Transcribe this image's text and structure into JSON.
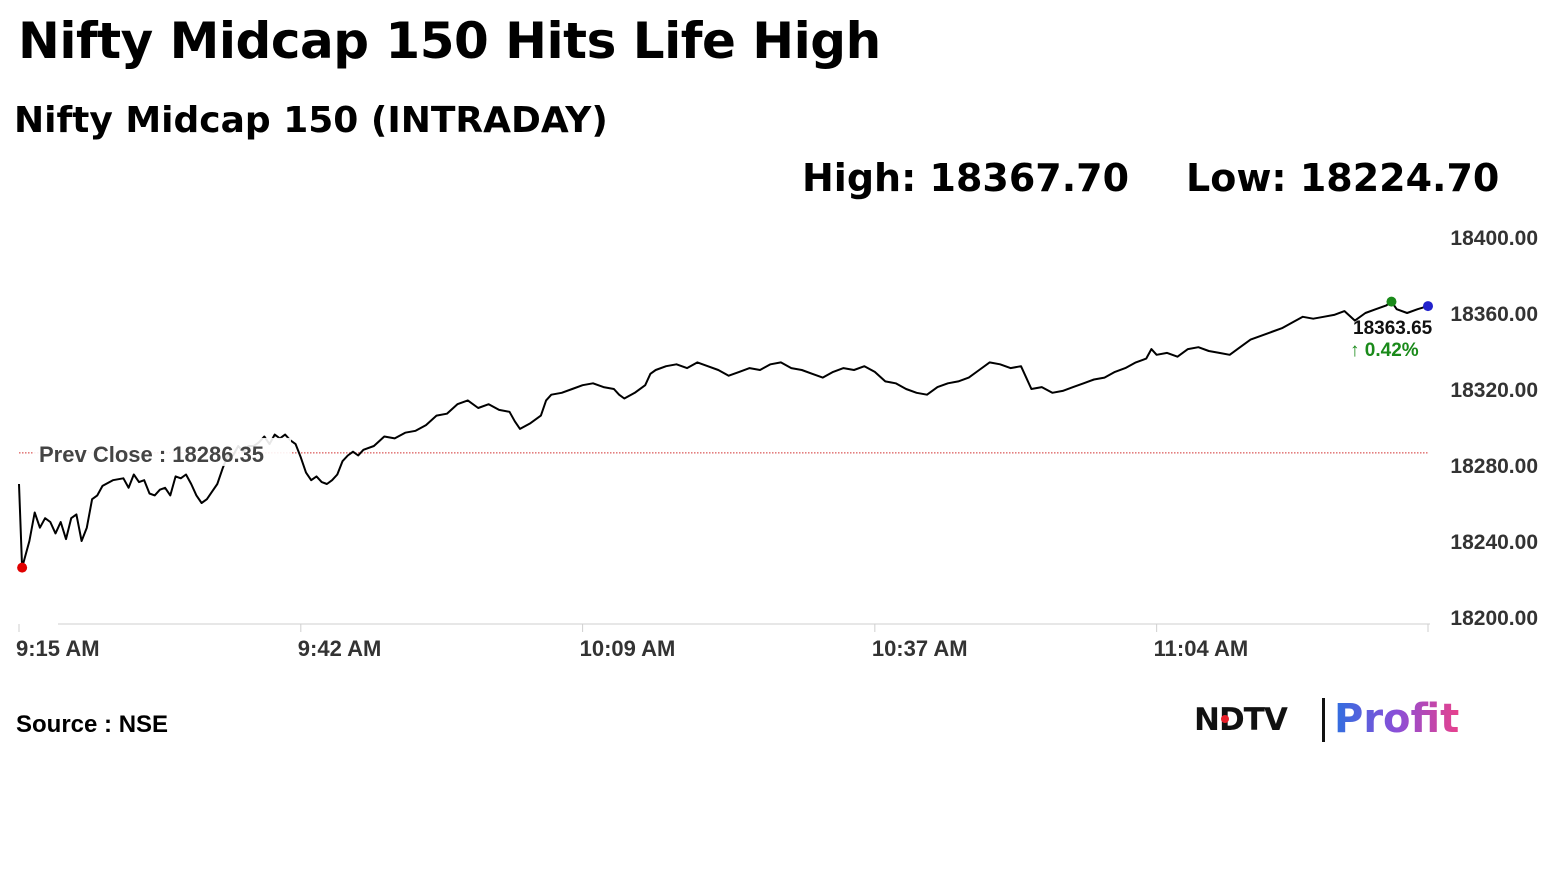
{
  "headline": "Nifty Midcap 150 Hits Life High",
  "subtitle": "Nifty Midcap 150 (INTRADAY)",
  "stats": {
    "high": "High: 18367.70",
    "low": "Low: 18224.70"
  },
  "source": "Source : NSE",
  "logo": {
    "ndtv": "NDTV",
    "profit": "Profit"
  },
  "chart_data": {
    "type": "line",
    "xlabel": "",
    "ylabel": "",
    "ylim": [
      18200,
      18400
    ],
    "y_ticks": [
      "18400.00",
      "18360.00",
      "18320.00",
      "18280.00",
      "18240.00",
      "18200.00"
    ],
    "x_ticks": [
      "9:15 AM",
      "9:42 AM",
      "10:09 AM",
      "10:37 AM",
      "11:04 AM"
    ],
    "x_tick_minutes": [
      0,
      27,
      54,
      82,
      109
    ],
    "x_range_minutes": [
      0,
      135
    ],
    "prev_close": {
      "value": 18286.35,
      "label": "Prev Close : 18286.35",
      "color": "#d23030"
    },
    "last_point": {
      "value": 18363.65,
      "label": "18363.65",
      "change": "↑ 0.42%",
      "change_color": "#1a8a1a"
    },
    "markers": {
      "low_color": "#e00000",
      "high_color": "#1a8a1a",
      "last_color": "#2222cc"
    },
    "series": [
      {
        "line_color": "#000000",
        "points": [
          [
            0,
            18270
          ],
          [
            0.3,
            18226
          ],
          [
            1,
            18240
          ],
          [
            1.5,
            18255
          ],
          [
            2,
            18247
          ],
          [
            2.5,
            18252
          ],
          [
            3,
            18250
          ],
          [
            3.5,
            18244
          ],
          [
            4,
            18250
          ],
          [
            4.5,
            18241
          ],
          [
            5,
            18252
          ],
          [
            5.5,
            18254
          ],
          [
            6,
            18240
          ],
          [
            6.5,
            18247
          ],
          [
            7,
            18262
          ],
          [
            7.5,
            18264
          ],
          [
            8,
            18269
          ],
          [
            9,
            18272
          ],
          [
            10,
            18273
          ],
          [
            10.5,
            18268
          ],
          [
            11,
            18275
          ],
          [
            11.5,
            18271
          ],
          [
            12,
            18272
          ],
          [
            12.5,
            18265
          ],
          [
            13,
            18264
          ],
          [
            13.5,
            18267
          ],
          [
            14,
            18268
          ],
          [
            14.5,
            18264
          ],
          [
            15,
            18274
          ],
          [
            15.5,
            18273
          ],
          [
            16,
            18275
          ],
          [
            16.5,
            18270
          ],
          [
            17,
            18264
          ],
          [
            17.5,
            18260
          ],
          [
            18,
            18262
          ],
          [
            18.5,
            18266
          ],
          [
            19,
            18270
          ],
          [
            19.5,
            18278
          ],
          [
            20,
            18285
          ],
          [
            20.5,
            18285
          ],
          [
            21,
            18290
          ],
          [
            21.5,
            18287
          ],
          [
            22,
            18290
          ],
          [
            22.5,
            18290
          ],
          [
            23,
            18292
          ],
          [
            23.5,
            18295
          ],
          [
            24,
            18291
          ],
          [
            24.5,
            18296
          ],
          [
            25,
            18294
          ],
          [
            25.5,
            18296
          ],
          [
            26,
            18293
          ],
          [
            26.5,
            18291
          ],
          [
            27,
            18284
          ],
          [
            27.5,
            18276
          ],
          [
            28,
            18272
          ],
          [
            28.5,
            18274
          ],
          [
            29,
            18271
          ],
          [
            29.5,
            18270
          ],
          [
            30,
            18272
          ],
          [
            30.5,
            18275
          ],
          [
            31,
            18282
          ],
          [
            31.5,
            18285
          ],
          [
            32,
            18287
          ],
          [
            32.5,
            18285
          ],
          [
            33,
            18288
          ],
          [
            34,
            18290
          ],
          [
            35,
            18295
          ],
          [
            36,
            18294
          ],
          [
            37,
            18297
          ],
          [
            38,
            18298
          ],
          [
            39,
            18301
          ],
          [
            40,
            18306
          ],
          [
            41,
            18307
          ],
          [
            42,
            18312
          ],
          [
            43,
            18314
          ],
          [
            44,
            18310
          ],
          [
            45,
            18312
          ],
          [
            46,
            18309
          ],
          [
            47,
            18308
          ],
          [
            47.5,
            18303
          ],
          [
            48,
            18299
          ],
          [
            49,
            18302
          ],
          [
            50,
            18306
          ],
          [
            50.5,
            18314
          ],
          [
            51,
            18317
          ],
          [
            52,
            18318
          ],
          [
            53,
            18320
          ],
          [
            54,
            18322
          ],
          [
            55,
            18323
          ],
          [
            56,
            18321
          ],
          [
            57,
            18320
          ],
          [
            57.5,
            18317
          ],
          [
            58,
            18315
          ],
          [
            59,
            18318
          ],
          [
            60,
            18322
          ],
          [
            60.5,
            18328
          ],
          [
            61,
            18330
          ],
          [
            62,
            18332
          ],
          [
            63,
            18333
          ],
          [
            64,
            18331
          ],
          [
            65,
            18334
          ],
          [
            66,
            18332
          ],
          [
            67,
            18330
          ],
          [
            68,
            18327
          ],
          [
            69,
            18329
          ],
          [
            70,
            18331
          ],
          [
            71,
            18330
          ],
          [
            72,
            18333
          ],
          [
            73,
            18334
          ],
          [
            74,
            18331
          ],
          [
            75,
            18330
          ],
          [
            76,
            18328
          ],
          [
            77,
            18326
          ],
          [
            78,
            18329
          ],
          [
            79,
            18331
          ],
          [
            80,
            18330
          ],
          [
            81,
            18332
          ],
          [
            82,
            18329
          ],
          [
            83,
            18324
          ],
          [
            84,
            18323
          ],
          [
            85,
            18320
          ],
          [
            86,
            18318
          ],
          [
            87,
            18317
          ],
          [
            88,
            18321
          ],
          [
            89,
            18323
          ],
          [
            90,
            18324
          ],
          [
            91,
            18326
          ],
          [
            92,
            18330
          ],
          [
            93,
            18334
          ],
          [
            94,
            18333
          ],
          [
            95,
            18331
          ],
          [
            96,
            18332
          ],
          [
            96.5,
            18326
          ],
          [
            97,
            18320
          ],
          [
            98,
            18321
          ],
          [
            99,
            18318
          ],
          [
            100,
            18319
          ],
          [
            101,
            18321
          ],
          [
            102,
            18323
          ],
          [
            103,
            18325
          ],
          [
            104,
            18326
          ],
          [
            105,
            18329
          ],
          [
            106,
            18331
          ],
          [
            107,
            18334
          ],
          [
            108,
            18336
          ],
          [
            108.5,
            18341
          ],
          [
            109,
            18338
          ],
          [
            110,
            18339
          ],
          [
            111,
            18337
          ],
          [
            112,
            18341
          ],
          [
            113,
            18342
          ],
          [
            114,
            18340
          ],
          [
            115,
            18339
          ],
          [
            116,
            18338
          ],
          [
            117,
            18342
          ],
          [
            118,
            18346
          ],
          [
            119,
            18348
          ],
          [
            120,
            18350
          ],
          [
            121,
            18352
          ],
          [
            122,
            18355
          ],
          [
            123,
            18358
          ],
          [
            124,
            18357
          ],
          [
            125,
            18358
          ],
          [
            126,
            18359
          ],
          [
            127,
            18361
          ],
          [
            128,
            18356
          ],
          [
            129,
            18360
          ],
          [
            130,
            18362
          ],
          [
            131,
            18364
          ],
          [
            131.5,
            18366
          ],
          [
            132,
            18362
          ],
          [
            133,
            18360
          ],
          [
            134,
            18362
          ],
          [
            135,
            18363.65
          ]
        ]
      }
    ]
  }
}
